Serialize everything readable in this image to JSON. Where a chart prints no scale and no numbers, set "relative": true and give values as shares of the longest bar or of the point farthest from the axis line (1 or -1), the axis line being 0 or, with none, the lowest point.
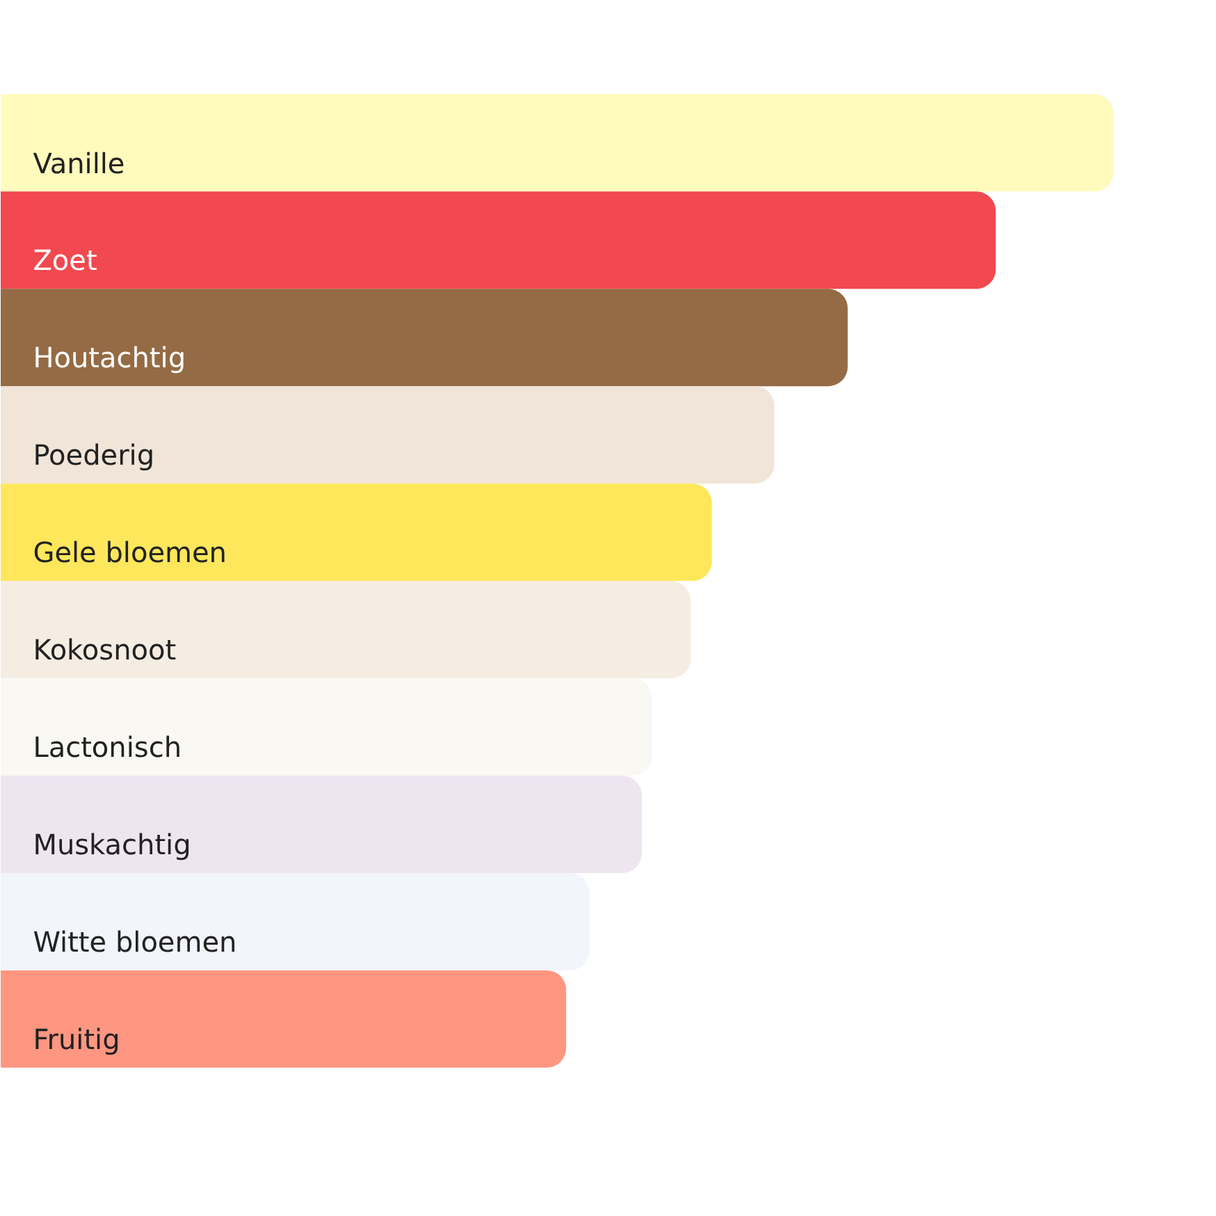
{
  "chart_data": {
    "type": "bar",
    "orientation": "horizontal",
    "relative": true,
    "categories": [
      "Vanille",
      "Zoet",
      "Houtachtig",
      "Poederig",
      "Gele bloemen",
      "Kokosnoot",
      "Lactonisch",
      "Muskachtig",
      "Witte bloemen",
      "Fruitig"
    ],
    "values": [
      1,
      0.894,
      0.761,
      0.695,
      0.639,
      0.62,
      0.585,
      0.576,
      0.529,
      0.508
    ],
    "colors": [
      "#fffbbd",
      "#f2484f",
      "#946b44",
      "#f1e5d9",
      "#fee75b",
      "#f6ede2",
      "#faf8f3",
      "#efe5f1",
      "#f3f5fc",
      "#fe9681"
    ]
  }
}
